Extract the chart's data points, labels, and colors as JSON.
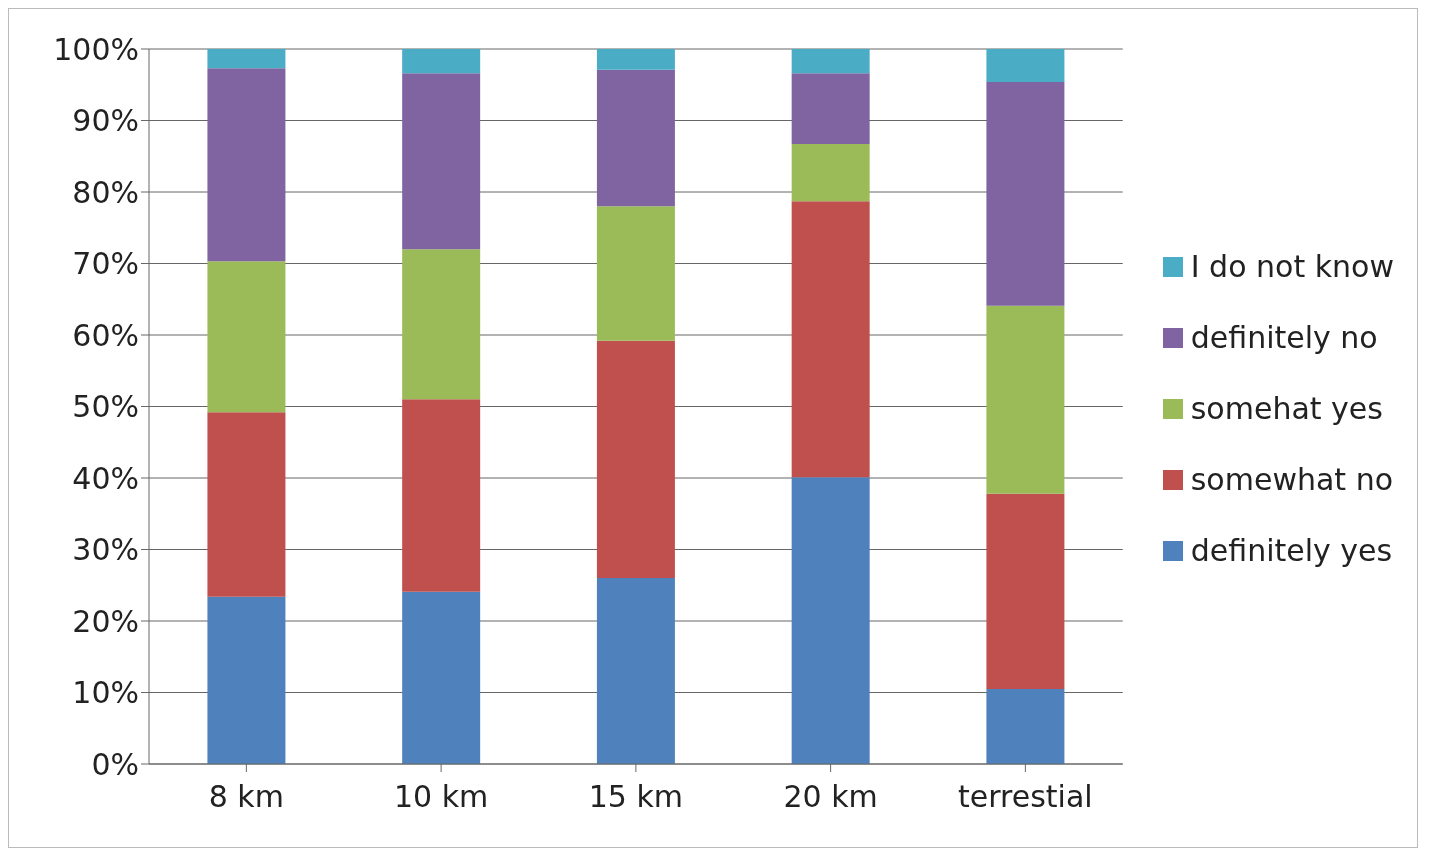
{
  "chart_data": {
    "type": "bar",
    "stacked": true,
    "categories": [
      "8 km",
      "10 km",
      "15 km",
      "20 km",
      "terrestial"
    ],
    "series": [
      {
        "name": "definitely yes",
        "color": "#4f81bd",
        "values": [
          23.4,
          24.1,
          26.0,
          40.1,
          10.5
        ]
      },
      {
        "name": "somewhat no",
        "color": "#c0504d",
        "values": [
          25.8,
          26.9,
          33.2,
          38.6,
          27.3
        ]
      },
      {
        "name": "somehat yes",
        "color": "#9bbb59",
        "values": [
          21.1,
          21.0,
          18.8,
          8.0,
          26.3
        ]
      },
      {
        "name": "definitely no",
        "color": "#8064a2",
        "values": [
          27.0,
          24.6,
          19.1,
          9.9,
          31.3
        ]
      },
      {
        "name": "I do not know",
        "color": "#4bacc6",
        "values": [
          2.7,
          3.4,
          2.9,
          3.4,
          4.6
        ]
      }
    ],
    "ylim": [
      0,
      100
    ],
    "yticks": [
      {
        "value": 0,
        "label": "0%"
      },
      {
        "value": 10,
        "label": "10%"
      },
      {
        "value": 20,
        "label": "20%"
      },
      {
        "value": 30,
        "label": "30%"
      },
      {
        "value": 40,
        "label": "40%"
      },
      {
        "value": 50,
        "label": "50%"
      },
      {
        "value": 60,
        "label": "60%"
      },
      {
        "value": 70,
        "label": "70%"
      },
      {
        "value": 80,
        "label": "80%"
      },
      {
        "value": 90,
        "label": "90%"
      },
      {
        "value": 100,
        "label": "100%"
      }
    ],
    "grid": "y",
    "legend": "right"
  }
}
